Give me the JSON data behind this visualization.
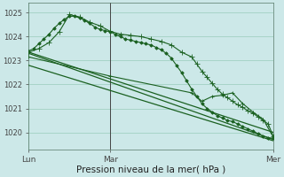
{
  "bg_color": "#cce8e8",
  "grid_color": "#99ccbb",
  "line_color": "#1a6020",
  "marker_color": "#1a6020",
  "ylabel_values": [
    1020,
    1021,
    1022,
    1023,
    1024,
    1025
  ],
  "xlim": [
    0,
    48
  ],
  "ylim": [
    1019.3,
    1025.4
  ],
  "xlabel": "Pression niveau de la mer( hPa )",
  "lines": [
    {
      "x": [
        0,
        1,
        2,
        3,
        4,
        5,
        6,
        7,
        8,
        9,
        10,
        11,
        12,
        13,
        14,
        15,
        16,
        17,
        18,
        19,
        20,
        21,
        22,
        23,
        24,
        25,
        26,
        27,
        28,
        29,
        30,
        31,
        32,
        33,
        34,
        35,
        36,
        37,
        38,
        39,
        40,
        41,
        42,
        43,
        44,
        45,
        46,
        47,
        48
      ],
      "y": [
        1023.4,
        1023.5,
        1023.7,
        1023.9,
        1024.1,
        1024.35,
        1024.55,
        1024.72,
        1024.85,
        1024.85,
        1024.78,
        1024.68,
        1024.55,
        1024.4,
        1024.3,
        1024.25,
        1024.2,
        1024.1,
        1024.0,
        1023.9,
        1023.85,
        1023.8,
        1023.75,
        1023.7,
        1023.65,
        1023.55,
        1023.45,
        1023.3,
        1023.1,
        1022.8,
        1022.5,
        1022.15,
        1021.8,
        1021.5,
        1021.2,
        1021.0,
        1020.85,
        1020.7,
        1020.6,
        1020.5,
        1020.45,
        1020.35,
        1020.25,
        1020.15,
        1020.05,
        1019.95,
        1019.85,
        1019.78,
        1019.75
      ],
      "marker": "D",
      "ms": 1.8,
      "lw": 0.8
    },
    {
      "x": [
        0,
        2,
        4,
        6,
        8,
        10,
        12,
        14,
        16,
        18,
        20,
        22,
        24,
        26,
        28,
        30,
        32,
        33,
        34,
        35,
        36,
        37,
        38,
        39,
        40,
        41,
        42,
        43,
        44,
        45,
        46,
        47,
        48
      ],
      "y": [
        1023.35,
        1023.5,
        1023.75,
        1024.2,
        1024.92,
        1024.82,
        1024.6,
        1024.45,
        1024.22,
        1024.1,
        1024.05,
        1024.0,
        1023.9,
        1023.8,
        1023.65,
        1023.35,
        1023.15,
        1022.85,
        1022.55,
        1022.3,
        1022.05,
        1021.8,
        1021.6,
        1021.45,
        1021.3,
        1021.15,
        1021.05,
        1020.9,
        1020.8,
        1020.65,
        1020.5,
        1020.35,
        1019.82
      ],
      "marker": "+",
      "ms": 4.0,
      "lw": 0.8
    },
    {
      "x": [
        0,
        48
      ],
      "y": [
        1023.3,
        1019.7
      ],
      "marker": null,
      "ms": 0,
      "lw": 0.9
    },
    {
      "x": [
        0,
        48
      ],
      "y": [
        1023.35,
        1020.0
      ],
      "marker": null,
      "ms": 0,
      "lw": 0.9
    },
    {
      "x": [
        0,
        48
      ],
      "y": [
        1022.8,
        1019.65
      ],
      "marker": null,
      "ms": 0,
      "lw": 0.9
    },
    {
      "x": [
        0,
        16,
        32,
        34,
        36,
        38,
        40,
        42,
        44,
        46,
        48
      ],
      "y": [
        1023.15,
        1022.35,
        1021.65,
        1021.3,
        1021.5,
        1021.55,
        1021.65,
        1021.2,
        1020.85,
        1020.55,
        1019.8
      ],
      "marker": "+",
      "ms": 3.5,
      "lw": 0.8
    }
  ],
  "vline_x": 16,
  "vline_color": "#444444",
  "vline_lw": 0.7,
  "xtick_pos": [
    0,
    16,
    48
  ],
  "xtick_labels": [
    "Lun",
    "Mar",
    "Mer"
  ],
  "ytick_fontsize": 6,
  "xtick_fontsize": 6.5,
  "xlabel_fontsize": 7.5
}
